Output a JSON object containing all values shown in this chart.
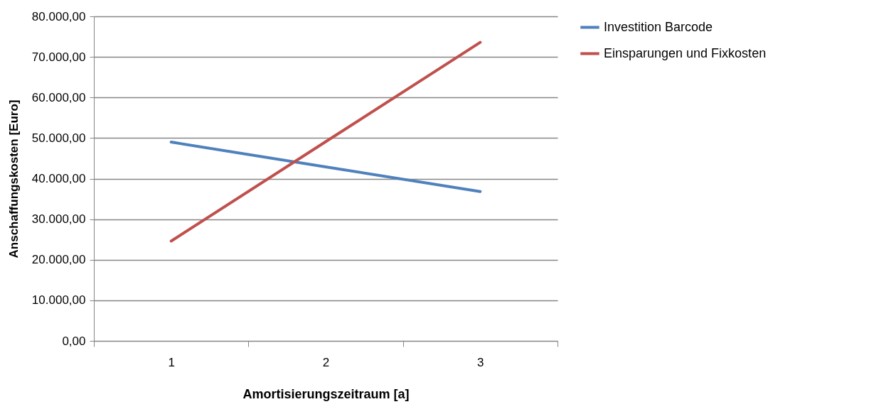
{
  "chart_data": {
    "type": "line",
    "xlabel": "Amortisierungszeitraum [a]",
    "ylabel": "Anschaffungskosten [Euro]",
    "categories": [
      "1",
      "2",
      "3"
    ],
    "series": [
      {
        "name": "Investition Barcode",
        "color": "#4f81bd",
        "values": [
          49000,
          42900,
          36800
        ]
      },
      {
        "name": "Einsparungen und Fixkosten",
        "color": "#c0504d",
        "values": [
          24600,
          49100,
          73600
        ]
      }
    ],
    "ylim": [
      0,
      80000
    ],
    "yticks": [
      {
        "value": 0,
        "label": "0,00"
      },
      {
        "value": 10000,
        "label": "10.000,00"
      },
      {
        "value": 20000,
        "label": "20.000,00"
      },
      {
        "value": 30000,
        "label": "30.000,00"
      },
      {
        "value": 40000,
        "label": "40.000,00"
      },
      {
        "value": 50000,
        "label": "50.000,00"
      },
      {
        "value": 60000,
        "label": "60.000,00"
      },
      {
        "value": 70000,
        "label": "70.000,00"
      },
      {
        "value": 80000,
        "label": "80.000,00"
      }
    ],
    "grid": "y",
    "legend": "right",
    "marker": "none",
    "line_style": "solid"
  }
}
